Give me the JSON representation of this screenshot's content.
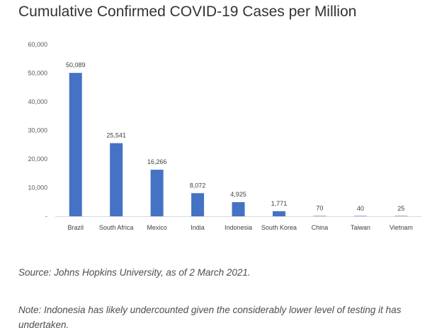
{
  "title": "Cumulative Confirmed COVID-19 Cases per Million",
  "source": "Source: Johns Hopkins University, as of 2 March 2021.",
  "note": "Note: Indonesia has likely undercounted given the considerably lower level of testing it has undertaken.",
  "chart_data": {
    "type": "bar",
    "categories": [
      "Brazil",
      "South Africa",
      "Mexico",
      "India",
      "Indonesia",
      "South Korea",
      "China",
      "Taiwan",
      "Vietnam"
    ],
    "values": [
      50089,
      25541,
      16266,
      8072,
      4925,
      1771,
      70,
      40,
      25
    ],
    "data_labels": [
      "50,089",
      "25,541",
      "16,266",
      "8,072",
      "4,925",
      "1,771",
      "70",
      "40",
      "25"
    ],
    "yticks": [
      "-",
      "10,000",
      "20,000",
      "30,000",
      "40,000",
      "50,000",
      "60,000"
    ],
    "ylim": [
      0,
      60000
    ],
    "grid": false,
    "bar_color": "#4472C4"
  }
}
